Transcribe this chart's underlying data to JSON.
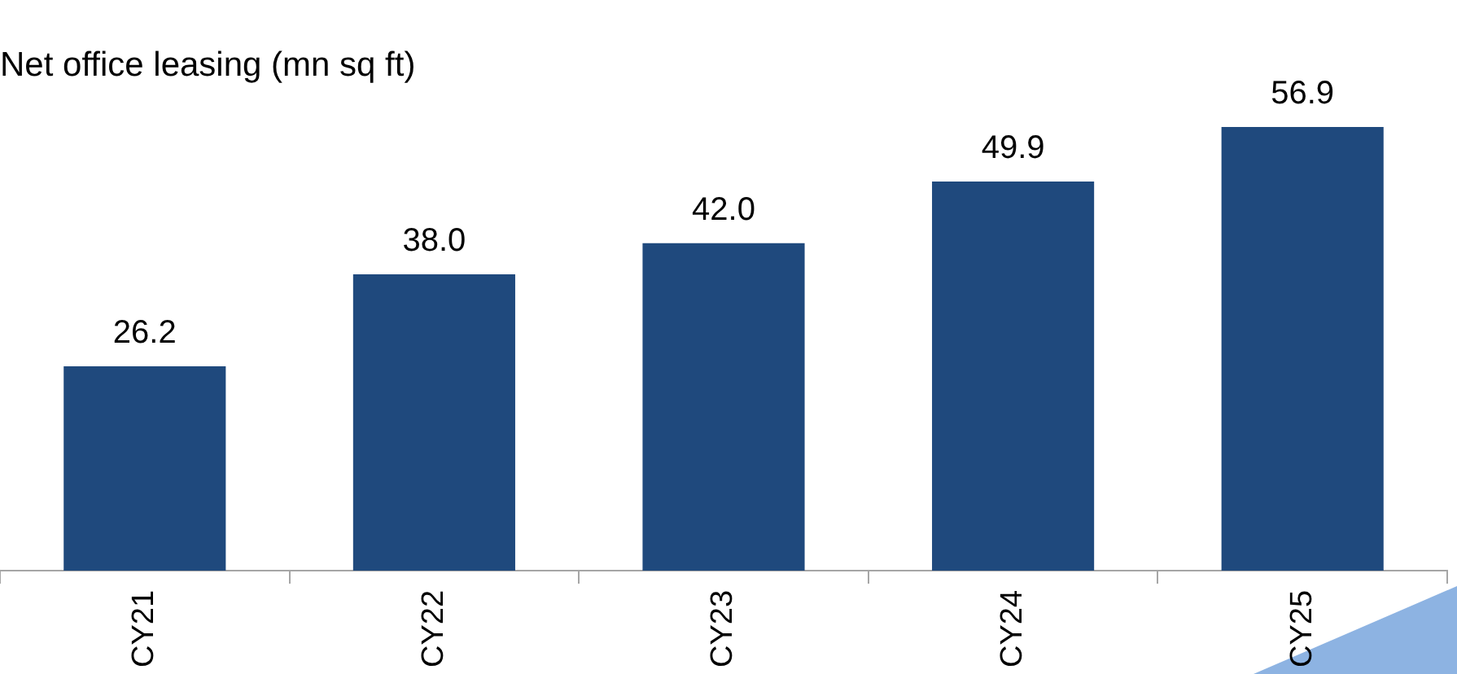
{
  "chart_data": {
    "type": "bar",
    "title": "Net office leasing (mn sq ft)",
    "categories": [
      "CY21",
      "CY22",
      "CY23",
      "CY24",
      "CY25"
    ],
    "values": [
      26.2,
      38.0,
      42.0,
      49.9,
      56.9
    ],
    "value_labels": [
      "26.2",
      "38.0",
      "42.0",
      "49.9",
      "56.9"
    ],
    "color": "#1f497d",
    "grid": false,
    "legend": false
  }
}
